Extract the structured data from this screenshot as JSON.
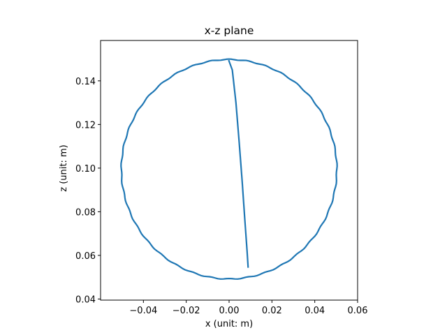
{
  "chart_data": {
    "type": "line",
    "title": "x-z plane",
    "xlabel": "x (unit: m)",
    "ylabel": "z (unit: m)",
    "xlim": [
      -0.06,
      0.06
    ],
    "ylim": [
      0.0395,
      0.1585
    ],
    "xticks": [
      -0.04,
      -0.02,
      0.0,
      0.02,
      0.04,
      0.06
    ],
    "xtick_labels": [
      "−0.04",
      "−0.02",
      "0.00",
      "0.02",
      "0.04",
      "0.06"
    ],
    "yticks": [
      0.04,
      0.06,
      0.08,
      0.1,
      0.12,
      0.14
    ],
    "ytick_labels": [
      "0.04",
      "0.06",
      "0.08",
      "0.10",
      "0.12",
      "0.14"
    ],
    "grid": false,
    "series": [
      {
        "style": "circular trajectory",
        "color": "#1f77b4",
        "center": [
          0.0,
          0.0995
        ],
        "radius_x": 0.0503,
        "radius_z": 0.0503,
        "start_angle_deg": 90,
        "end_angle_deg": 450
      },
      {
        "style": "drift segment",
        "color": "#1f77b4",
        "x": [
          -0.0002,
          0.0015,
          0.0032,
          0.0047,
          0.0061,
          0.0073,
          0.0084,
          0.0089
        ],
        "y": [
          0.1495,
          0.145,
          0.13,
          0.112,
          0.094,
          0.077,
          0.062,
          0.0543
        ]
      }
    ]
  }
}
